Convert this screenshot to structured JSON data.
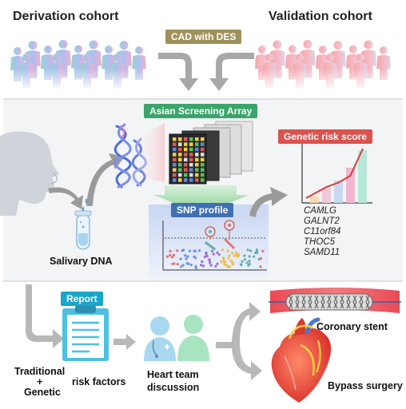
{
  "cohorts": {
    "derivation": "Derivation cohort",
    "validation": "Validation cohort",
    "cad_label": "CAD with DES"
  },
  "screening": {
    "array_label": "Asian Screening Array",
    "snp_label": "SNP profile",
    "salivary_label": "Salivary DNA"
  },
  "risk_score": {
    "label": "Genetic risk score",
    "genes": [
      "CAMLG",
      "GALNT2",
      "C11orf84",
      "THOC5",
      "SAMD11"
    ]
  },
  "report": {
    "badge": "Report",
    "traditional": "Traditional",
    "plus": "+",
    "genetic": "Genetic",
    "risk_factors": "risk factors",
    "heart_team": "Heart team",
    "discussion": "discussion"
  },
  "outcomes": {
    "stent": "Coronary stent",
    "bypass": "Bypass surgery"
  },
  "colors": {
    "cad_badge": "#a0905a",
    "array_badge": "#3aa56a",
    "snp_badge": "#3f6fb5",
    "grs_badge": "#d9534f",
    "report_badge": "#1aa6c8",
    "panel_bg": "#f3f4f6",
    "arrow_gray": "#a8a8a8"
  }
}
